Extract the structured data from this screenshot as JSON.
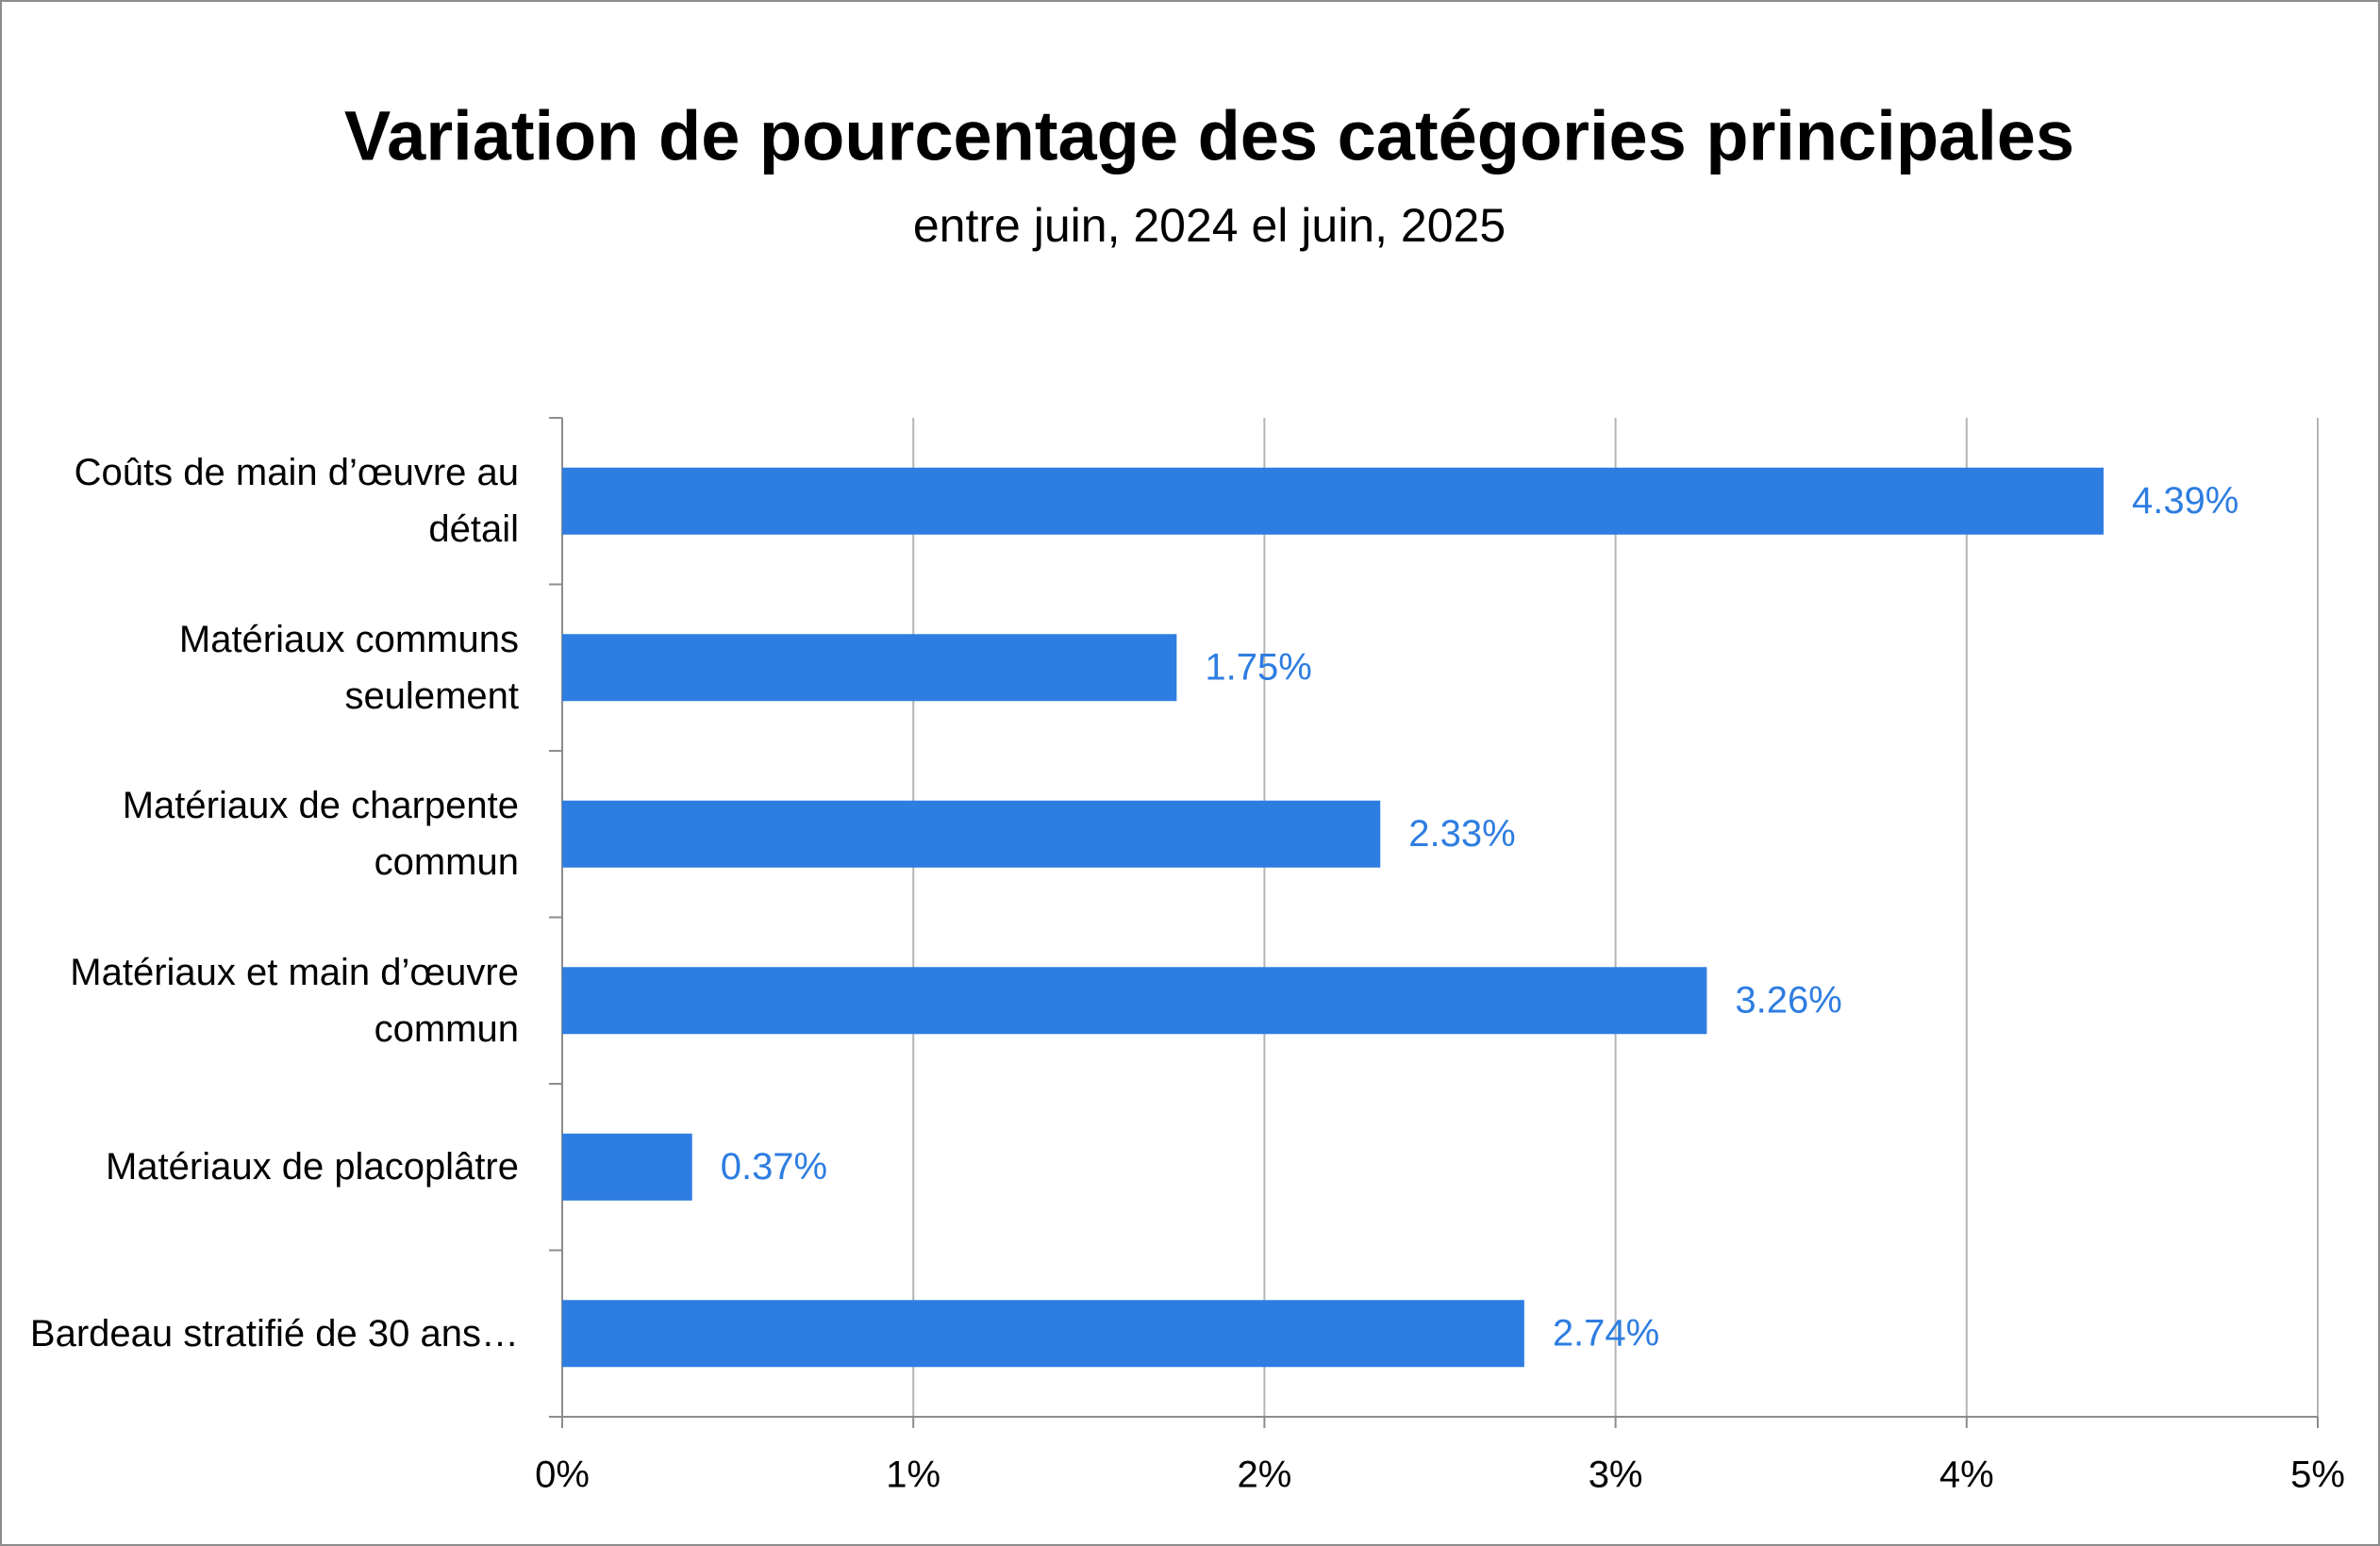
{
  "chart_data": {
    "type": "bar",
    "orientation": "horizontal",
    "title": "Variation de pourcentage des catégories principales",
    "subtitle": "entre juin, 2024 el juin, 2025",
    "categories": [
      "Coûts de main d’œuvre au détail",
      "Matériaux communs seulement",
      "Matériaux de charpente commun",
      "Matériaux et main d’œuvre commun",
      "Matériaux de placoplâtre",
      "Bardeau stratifié de 30 ans…"
    ],
    "values": [
      4.39,
      1.75,
      2.33,
      3.26,
      0.37,
      2.74
    ],
    "value_labels": [
      "4.39%",
      "1.75%",
      "2.33%",
      "3.26%",
      "0.37%",
      "2.74%"
    ],
    "color": "#2e7de1",
    "xlim": [
      0,
      5
    ],
    "xticks": [
      {
        "value": 0,
        "label": "0%"
      },
      {
        "value": 1,
        "label": "1%"
      },
      {
        "value": 2,
        "label": "2%"
      },
      {
        "value": 3,
        "label": "3%"
      },
      {
        "value": 4,
        "label": "4%"
      },
      {
        "value": 5,
        "label": "5%"
      }
    ],
    "grid": true
  }
}
